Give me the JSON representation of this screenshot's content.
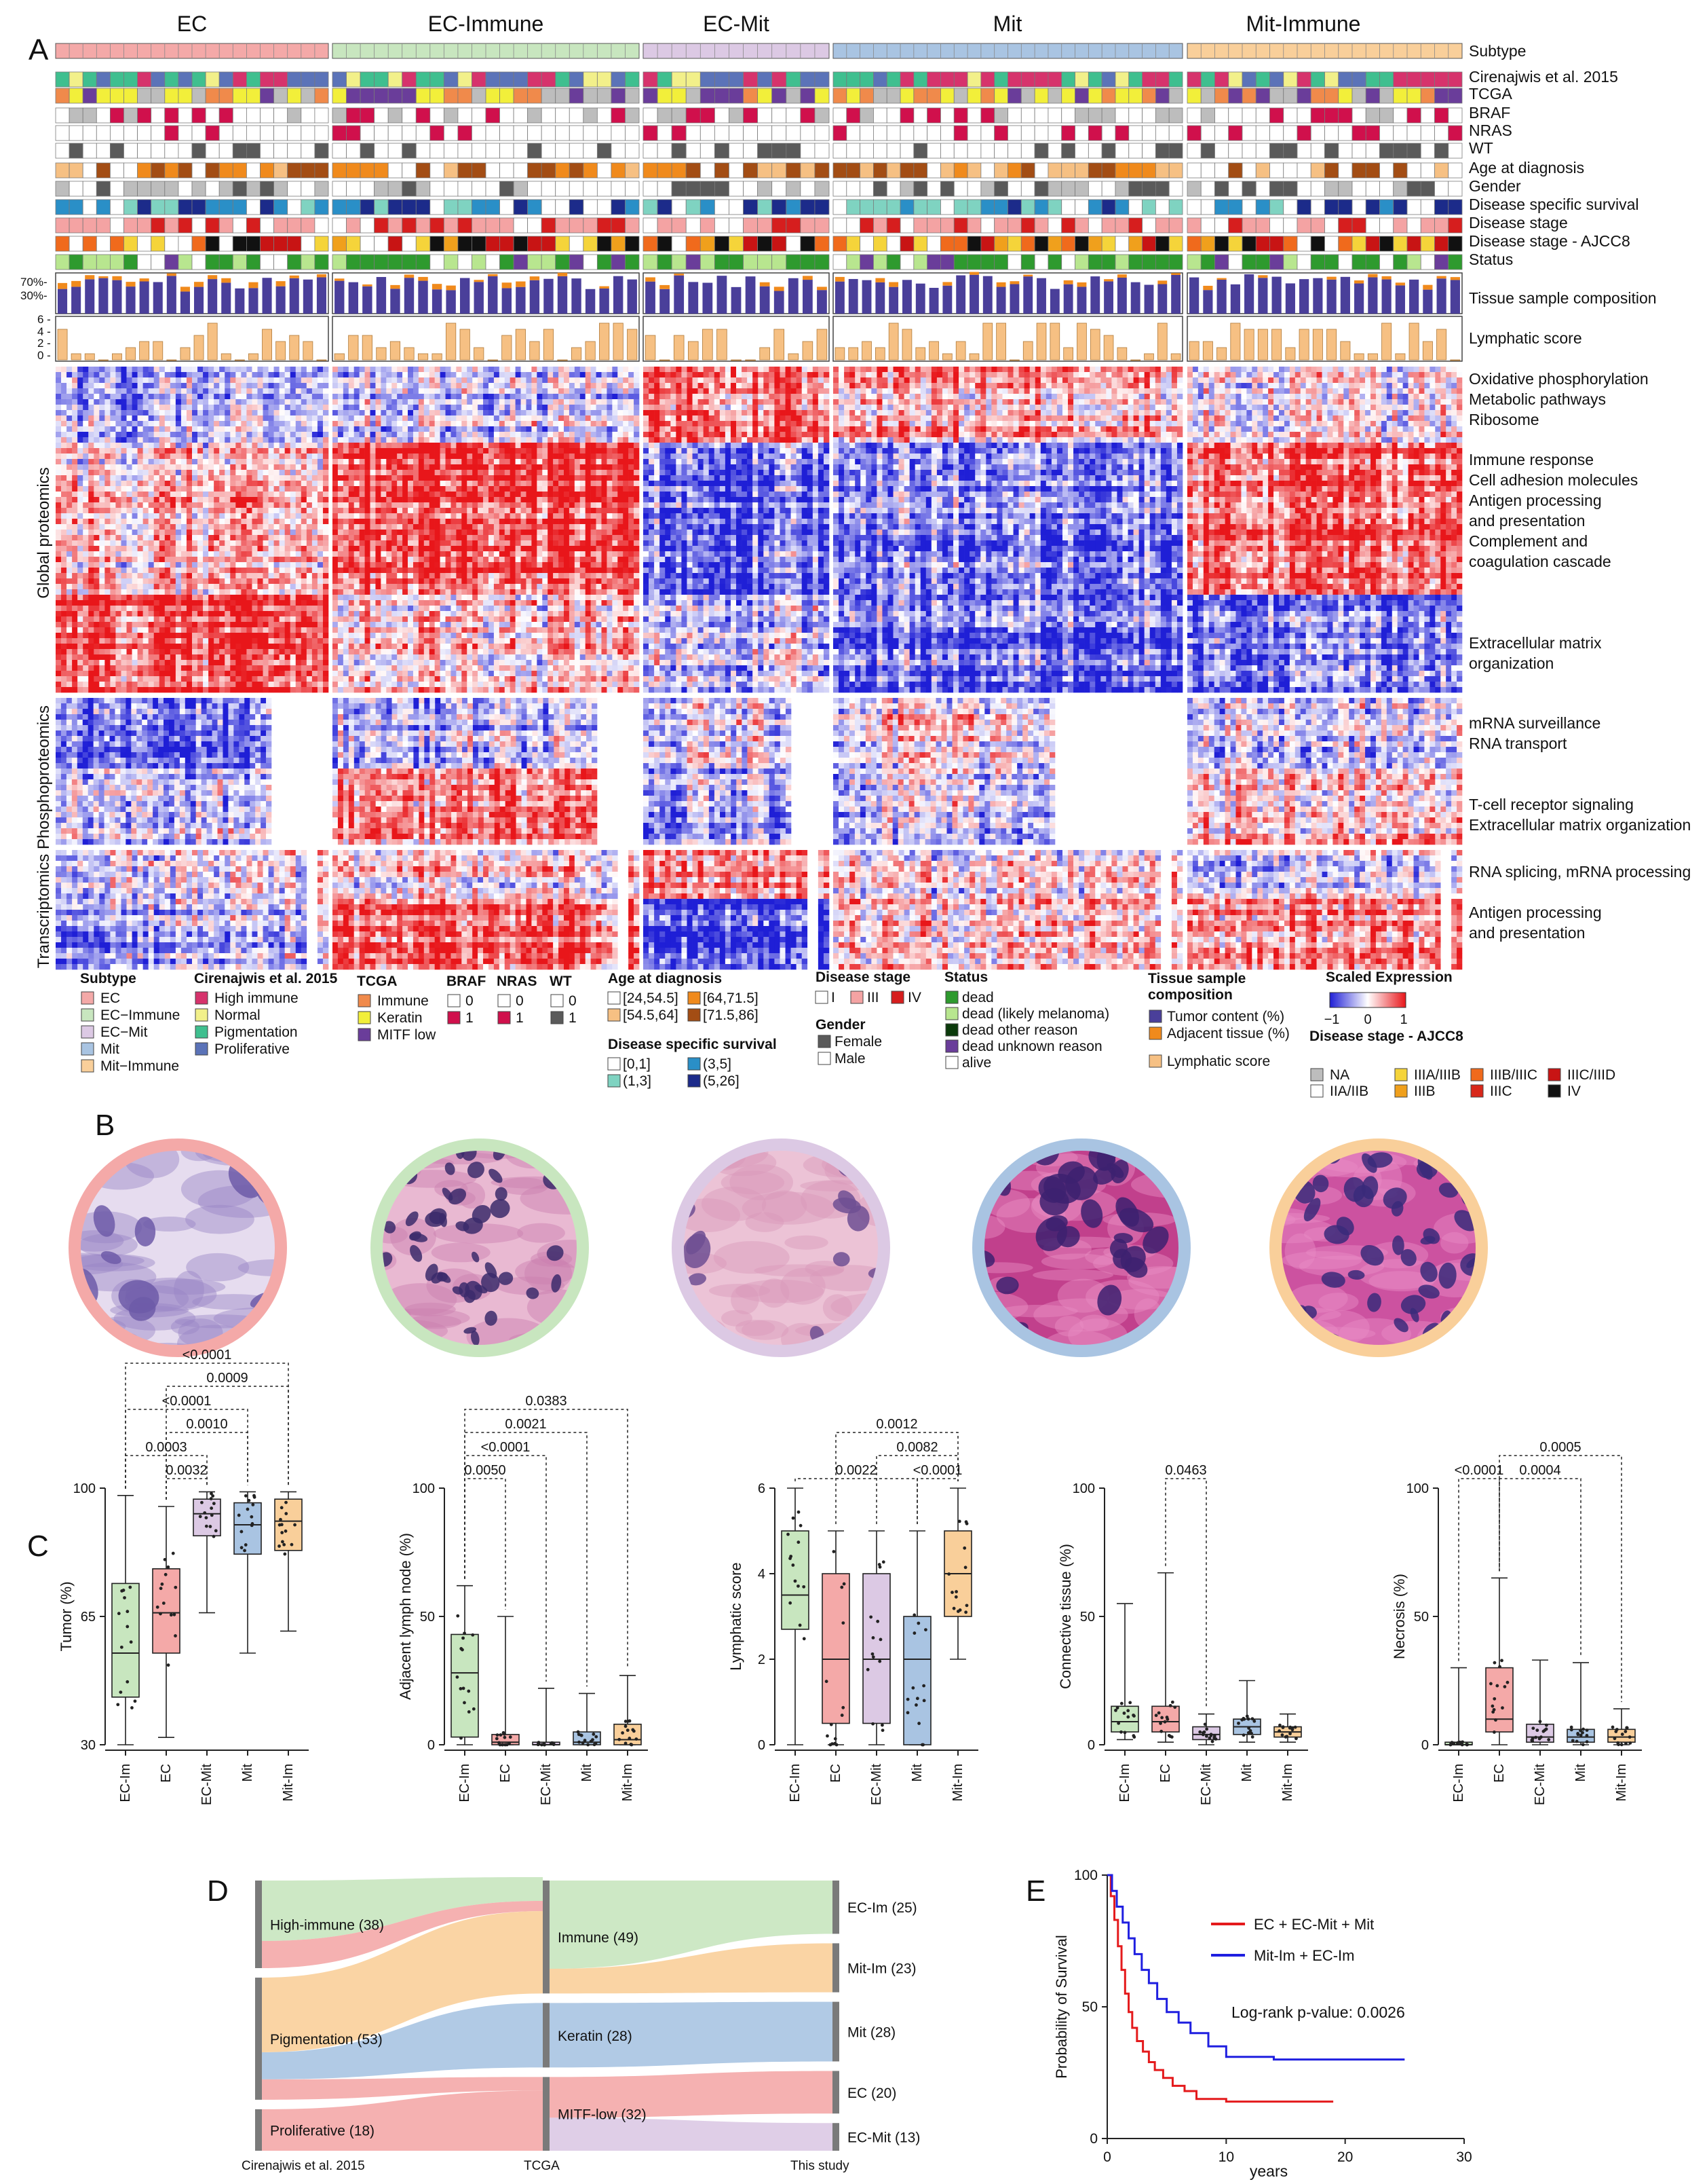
{
  "panel_letters": [
    "A",
    "B",
    "C",
    "D",
    "E"
  ],
  "subtypes": [
    "EC",
    "EC-Immune",
    "EC-Mit",
    "Mit",
    "Mit-Immune"
  ],
  "colors": {
    "EC": "#f4a9a8",
    "EC-Immune": "#c8e6bf",
    "EC-Mit": "#dcc9e4",
    "Mit": "#a9c4e2",
    "Mit-Immune": "#f9cf9a",
    "heat_low": "#1f1fd6",
    "heat_mid": "#ffffff",
    "heat_high": "#e8161a",
    "tumor": "#4a3f9a",
    "adjacent": "#f08a1c",
    "lymphatic": "#f6c083"
  },
  "track_labels": [
    "Subtype",
    "Cirenajwis et al. 2015",
    "TCGA",
    "BRAF",
    "NRAS",
    "WT",
    "Age at diagnosis",
    "Gender",
    "Disease specific survival",
    "Disease stage",
    "Disease stage - AJCC8",
    "Status"
  ],
  "composition_axis": [
    "70%-",
    "30%-"
  ],
  "lymph_axis": [
    "6 -",
    "4 -",
    "2 -",
    "0 -"
  ],
  "row_labels_right": {
    "composition": "Tissue sample composition",
    "lymphatic": "Lymphatic score"
  },
  "pathways": [
    "Oxidative phosphorylation",
    "Metabolic pathways",
    "Ribosome",
    "Immune response",
    "Cell adhesion molecules",
    "Antigen processing",
    "and presentation",
    "Complement and",
    "coagulation cascade",
    "Extracellular matrix",
    "organization",
    "mRNA surveillance",
    "RNA transport",
    "T-cell receptor signaling",
    "Extracellular matrix organization",
    "RNA splicing, mRNA processing",
    "Antigen processing",
    "and presentation"
  ],
  "omics_labels": [
    "Global proteomics",
    "Phosphoproteomics",
    "Transcriptomics"
  ],
  "legend": {
    "subtype": {
      "title": "Subtype",
      "items": [
        "EC",
        "EC−Immune",
        "EC−Mit",
        "Mit",
        "Mit−Immune"
      ]
    },
    "cirenajwis": {
      "title": "Cirenajwis et al. 2015",
      "items": [
        "High immune",
        "Normal",
        "Pigmentation",
        "Proliferative"
      ],
      "colors": [
        "#d6336c",
        "#f2f08a",
        "#3fbf8f",
        "#5b73b8"
      ]
    },
    "tcga": {
      "title": "TCGA",
      "items": [
        "Immune",
        "Keratin",
        "MITF low"
      ],
      "colors": [
        "#f08a4b",
        "#f2ef3a",
        "#6a3d9a"
      ]
    },
    "braf": {
      "title": "BRAF",
      "items": [
        "0",
        "1"
      ]
    },
    "nras": {
      "title": "NRAS",
      "items": [
        "0",
        "1"
      ]
    },
    "wt": {
      "title": "WT",
      "items": [
        "0",
        "1"
      ]
    },
    "age": {
      "title": "Age at diagnosis",
      "items": [
        "[24,54.5]",
        "[64,71.5]",
        "[54.5,64]",
        "[71.5,86]"
      ],
      "colors": [
        "#ffffff",
        "#f08a1c",
        "#f6c083",
        "#a34d14"
      ]
    },
    "dss": {
      "title": "Disease specific survival",
      "items": [
        "[0,1]",
        "(3,5]",
        "(1,3]",
        "(5,26]"
      ],
      "colors": [
        "#ffffff",
        "#2a8fc7",
        "#7fd3c1",
        "#1c2b8a"
      ]
    },
    "stage": {
      "title": "Disease stage",
      "items": [
        "I",
        "III",
        "IV"
      ],
      "colors": [
        "#ffffff",
        "#f4a3a3",
        "#d61e1e"
      ]
    },
    "gender": {
      "title": "Gender",
      "items": [
        "Female",
        "Male"
      ],
      "colors": [
        "#5a5a5a",
        "#ffffff"
      ]
    },
    "status": {
      "title": "Status",
      "items": [
        "dead",
        "dead (likely melanoma)",
        "dead other reason",
        "dead unknown reason",
        "alive"
      ],
      "colors": [
        "#2e9a2e",
        "#b8e68f",
        "#0b3a0b",
        "#6a3d9a",
        "#ffffff"
      ]
    },
    "tissue": {
      "title1": "Tissue sample",
      "title2": "composition",
      "items": [
        "Tumor content (%)",
        "Adjacent tissue (%)",
        "Lymphatic score"
      ]
    },
    "scaled": {
      "title": "Scaled Expression",
      "ticks": [
        "−1",
        "0",
        "1"
      ]
    },
    "ajcc": {
      "title": "Disease stage - AJCC8",
      "items": [
        "NA",
        "IIIA/IIIB",
        "IIIB/IIIC",
        "IIIC/IIID",
        "IIA/IIB",
        "IIIB",
        "IIIC",
        "IV"
      ],
      "colors": [
        "#bdbdbd",
        "#f5d43a",
        "#f06a1c",
        "#c81414",
        "#ffffff",
        "#f0a01c",
        "#d8281a",
        "#111111"
      ]
    }
  },
  "boxplots": [
    {
      "ylabel": "Tumor (%)",
      "categories": [
        "EC-Im",
        "EC",
        "EC-Mit",
        "Mit",
        "Mit-Im"
      ],
      "ylim": [
        30,
        100
      ],
      "yticks": [
        30,
        65,
        100
      ],
      "boxes": [
        {
          "min": 30,
          "q1": 43,
          "median": 55,
          "q3": 74,
          "max": 98
        },
        {
          "min": 32,
          "q1": 55,
          "median": 66,
          "q3": 78,
          "max": 95
        },
        {
          "min": 66,
          "q1": 87,
          "median": 93,
          "q3": 97,
          "max": 99
        },
        {
          "min": 55,
          "q1": 82,
          "median": 90,
          "q3": 96,
          "max": 99
        },
        {
          "min": 61,
          "q1": 83,
          "median": 91,
          "q3": 97,
          "max": 99
        }
      ],
      "brackets": [
        {
          "from": 1,
          "to": 2,
          "label": "0.0032",
          "level": 1
        },
        {
          "from": 0,
          "to": 2,
          "label": "0.0003",
          "level": 2
        },
        {
          "from": 1,
          "to": 3,
          "label": "0.0010",
          "level": 3
        },
        {
          "from": 0,
          "to": 3,
          "label": "<0.0001",
          "level": 4
        },
        {
          "from": 1,
          "to": 4,
          "label": "0.0009",
          "level": 5
        },
        {
          "from": 0,
          "to": 4,
          "label": "<0.0001",
          "level": 6
        }
      ]
    },
    {
      "ylabel": "Adjacent lymph node (%)",
      "categories": [
        "EC-Im",
        "EC",
        "EC-Mit",
        "Mit",
        "Mit-Im"
      ],
      "ylim": [
        0,
        100
      ],
      "yticks": [
        0,
        50,
        100
      ],
      "boxes": [
        {
          "min": 0,
          "q1": 3,
          "median": 28,
          "q3": 43,
          "max": 62
        },
        {
          "min": 0,
          "q1": 0,
          "median": 1,
          "q3": 4,
          "max": 50
        },
        {
          "min": 0,
          "q1": 0,
          "median": 0,
          "q3": 1,
          "max": 22
        },
        {
          "min": 0,
          "q1": 0,
          "median": 1,
          "q3": 5,
          "max": 20
        },
        {
          "min": 0,
          "q1": 0,
          "median": 2,
          "q3": 8,
          "max": 27
        }
      ],
      "brackets": [
        {
          "from": 0,
          "to": 1,
          "label": "0.0050",
          "level": 1
        },
        {
          "from": 0,
          "to": 2,
          "label": "<0.0001",
          "level": 2
        },
        {
          "from": 0,
          "to": 3,
          "label": "0.0021",
          "level": 3
        },
        {
          "from": 0,
          "to": 4,
          "label": "0.0383",
          "level": 4
        }
      ]
    },
    {
      "ylabel": "Lymphatic score",
      "categories": [
        "EC-Im",
        "EC",
        "EC-Mit",
        "Mit",
        "Mit-Im"
      ],
      "ylim": [
        0,
        6
      ],
      "yticks": [
        0,
        2,
        4,
        6
      ],
      "boxes": [
        {
          "min": 0,
          "q1": 2.7,
          "median": 3.5,
          "q3": 5,
          "max": 6
        },
        {
          "min": 0,
          "q1": 0.5,
          "median": 2,
          "q3": 4,
          "max": 5
        },
        {
          "min": 0,
          "q1": 0.5,
          "median": 2,
          "q3": 4,
          "max": 5
        },
        {
          "min": 0,
          "q1": 0,
          "median": 2,
          "q3": 3,
          "max": 5
        },
        {
          "min": 2,
          "q1": 3,
          "median": 4,
          "q3": 5,
          "max": 6
        }
      ],
      "brackets": [
        {
          "from": 3,
          "to": 4,
          "label": "<0.0001",
          "level": 1
        },
        {
          "from": 0,
          "to": 3,
          "label": "0.0022",
          "level": 1
        },
        {
          "from": 2,
          "to": 4,
          "label": "0.0082",
          "level": 2
        },
        {
          "from": 1,
          "to": 4,
          "label": "0.0012",
          "level": 3
        }
      ]
    },
    {
      "ylabel": "Connective tissue (%)",
      "categories": [
        "EC-Im",
        "EC",
        "EC-Mit",
        "Mit",
        "Mit-Im"
      ],
      "ylim": [
        0,
        100
      ],
      "yticks": [
        0,
        50,
        100
      ],
      "boxes": [
        {
          "min": 2,
          "q1": 5,
          "median": 9,
          "q3": 15,
          "max": 55
        },
        {
          "min": 1,
          "q1": 5,
          "median": 9,
          "q3": 15,
          "max": 67
        },
        {
          "min": 0,
          "q1": 2,
          "median": 4,
          "q3": 7,
          "max": 12
        },
        {
          "min": 1,
          "q1": 4,
          "median": 7,
          "q3": 10,
          "max": 25
        },
        {
          "min": 1,
          "q1": 3,
          "median": 5,
          "q3": 7,
          "max": 12
        }
      ],
      "brackets": [
        {
          "from": 1,
          "to": 2,
          "label": "0.0463",
          "level": 1
        }
      ]
    },
    {
      "ylabel": "Necrosis (%)",
      "categories": [
        "EC-Im",
        "EC",
        "EC-Mit",
        "Mit",
        "Mit-Im"
      ],
      "ylim": [
        0,
        100
      ],
      "yticks": [
        0,
        50,
        100
      ],
      "boxes": [
        {
          "min": 0,
          "q1": 0,
          "median": 0,
          "q3": 1,
          "max": 30
        },
        {
          "min": 0,
          "q1": 5,
          "median": 10,
          "q3": 30,
          "max": 65
        },
        {
          "min": 0,
          "q1": 1,
          "median": 3,
          "q3": 8,
          "max": 33
        },
        {
          "min": 0,
          "q1": 1,
          "median": 3,
          "q3": 6,
          "max": 32
        },
        {
          "min": 0,
          "q1": 1,
          "median": 3,
          "q3": 6,
          "max": 14
        }
      ],
      "brackets": [
        {
          "from": 0,
          "to": 1,
          "label": "<0.0001",
          "level": 1
        },
        {
          "from": 1,
          "to": 3,
          "label": "0.0004",
          "level": 1
        },
        {
          "from": 1,
          "to": 4,
          "label": "0.0005",
          "level": 2
        }
      ]
    }
  ],
  "sankey": {
    "axis_labels": [
      "Cirenajwis et al. 2015",
      "TCGA",
      "This study"
    ],
    "left": [
      {
        "label": "High-immune (38)",
        "value": 38
      },
      {
        "label": "Pigmentation (53)",
        "value": 53
      },
      {
        "label": "Proliferative (18)",
        "value": 18
      }
    ],
    "middle": [
      {
        "label": "Immune (49)",
        "value": 49
      },
      {
        "label": "Keratin (28)",
        "value": 28
      },
      {
        "label": "MITF-low (32)",
        "value": 32
      }
    ],
    "right": [
      {
        "label": "EC-Im (25)",
        "value": 25
      },
      {
        "label": "Mit-Im (23)",
        "value": 23
      },
      {
        "label": "Mit (28)",
        "value": 28
      },
      {
        "label": "EC (20)",
        "value": 20
      },
      {
        "label": "EC-Mit (13)",
        "value": 13
      }
    ]
  },
  "survival": {
    "type": "line",
    "xlabel": "years",
    "ylabel": "Probability of Survival",
    "xlim": [
      0,
      30
    ],
    "ylim": [
      0,
      100
    ],
    "xticks": [
      0,
      10,
      20,
      30
    ],
    "yticks": [
      0,
      50,
      100
    ],
    "annotation": "Log-rank p-value: 0.0026",
    "series": [
      {
        "name": "EC + EC-Mit + Mit",
        "color": "#e41a1c",
        "x": [
          0,
          0.3,
          0.6,
          0.9,
          1.2,
          1.5,
          1.8,
          2.1,
          2.5,
          3,
          3.5,
          4,
          4.7,
          5.5,
          6.5,
          7.5,
          10,
          15,
          19
        ],
        "y": [
          100,
          92,
          83,
          73,
          64,
          55,
          48,
          42,
          37,
          33,
          29,
          26,
          23,
          20,
          18,
          15,
          14,
          14,
          14
        ]
      },
      {
        "name": "Mit-Im + EC-Im",
        "color": "#1f1fe0",
        "x": [
          0,
          0.4,
          0.8,
          1.3,
          1.8,
          2.3,
          2.9,
          3.5,
          4.2,
          5,
          6,
          7,
          8.5,
          10,
          14,
          20,
          25
        ],
        "y": [
          100,
          94,
          88,
          82,
          76,
          70,
          64,
          59,
          53,
          48,
          44,
          40,
          35,
          31,
          30,
          30,
          30
        ]
      }
    ]
  }
}
